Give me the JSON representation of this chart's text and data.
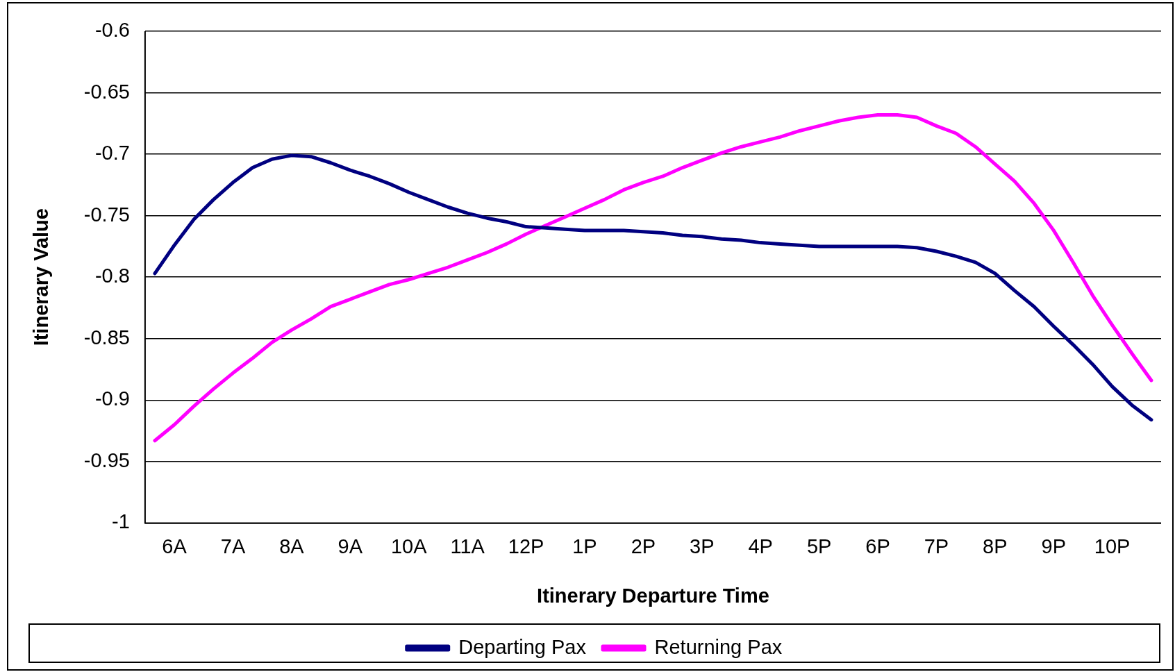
{
  "chart_data": {
    "type": "line",
    "xlabel": "Itinerary Departure Time",
    "ylabel": "Itinerary Value",
    "categories": [
      null,
      "6A",
      null,
      null,
      "7A",
      null,
      null,
      "8A",
      null,
      null,
      "9A",
      null,
      null,
      "10A",
      null,
      null,
      "11A",
      null,
      null,
      "12P",
      null,
      null,
      "1P",
      null,
      null,
      "2P",
      null,
      null,
      "3P",
      null,
      null,
      "4P",
      null,
      null,
      "5P",
      null,
      null,
      "6P",
      null,
      null,
      "7P",
      null,
      null,
      "8P",
      null,
      null,
      "9P",
      null,
      null,
      "10P",
      null,
      null
    ],
    "ylim": [
      -1,
      -0.6
    ],
    "yticks": [
      -1,
      -0.95,
      -0.9,
      -0.85,
      -0.8,
      -0.75,
      -0.7,
      -0.65,
      -0.6
    ],
    "grid": "y",
    "legend": "bottom",
    "marker": "none",
    "line_style": "solid",
    "series": [
      {
        "name": "Departing Pax",
        "color": "#000080",
        "values": [
          -0.797,
          -0.774,
          -0.753,
          -0.737,
          -0.723,
          -0.711,
          -0.704,
          -0.701,
          -0.702,
          -0.707,
          -0.713,
          -0.718,
          -0.724,
          -0.731,
          -0.737,
          -0.743,
          -0.748,
          -0.752,
          -0.755,
          -0.759,
          -0.76,
          -0.761,
          -0.762,
          -0.762,
          -0.762,
          -0.763,
          -0.764,
          -0.766,
          -0.767,
          -0.769,
          -0.77,
          -0.772,
          -0.773,
          -0.774,
          -0.775,
          -0.775,
          -0.775,
          -0.775,
          -0.775,
          -0.776,
          -0.779,
          -0.783,
          -0.788,
          -0.797,
          -0.811,
          -0.824,
          -0.84,
          -0.855,
          -0.871,
          -0.889,
          -0.904,
          -0.916
        ]
      },
      {
        "name": "Returning Pax",
        "color": "#ff00ff",
        "values": [
          -0.933,
          -0.92,
          -0.905,
          -0.891,
          -0.878,
          -0.866,
          -0.853,
          -0.843,
          -0.834,
          -0.824,
          -0.818,
          -0.812,
          -0.806,
          -0.802,
          -0.797,
          -0.792,
          -0.786,
          -0.78,
          -0.773,
          -0.765,
          -0.758,
          -0.751,
          -0.744,
          -0.737,
          -0.729,
          -0.723,
          -0.718,
          -0.711,
          -0.705,
          -0.699,
          -0.694,
          -0.69,
          -0.686,
          -0.681,
          -0.677,
          -0.673,
          -0.67,
          -0.668,
          -0.668,
          -0.67,
          -0.677,
          -0.683,
          -0.694,
          -0.708,
          -0.722,
          -0.74,
          -0.762,
          -0.788,
          -0.815,
          -0.839,
          -0.862,
          -0.884
        ]
      }
    ]
  }
}
